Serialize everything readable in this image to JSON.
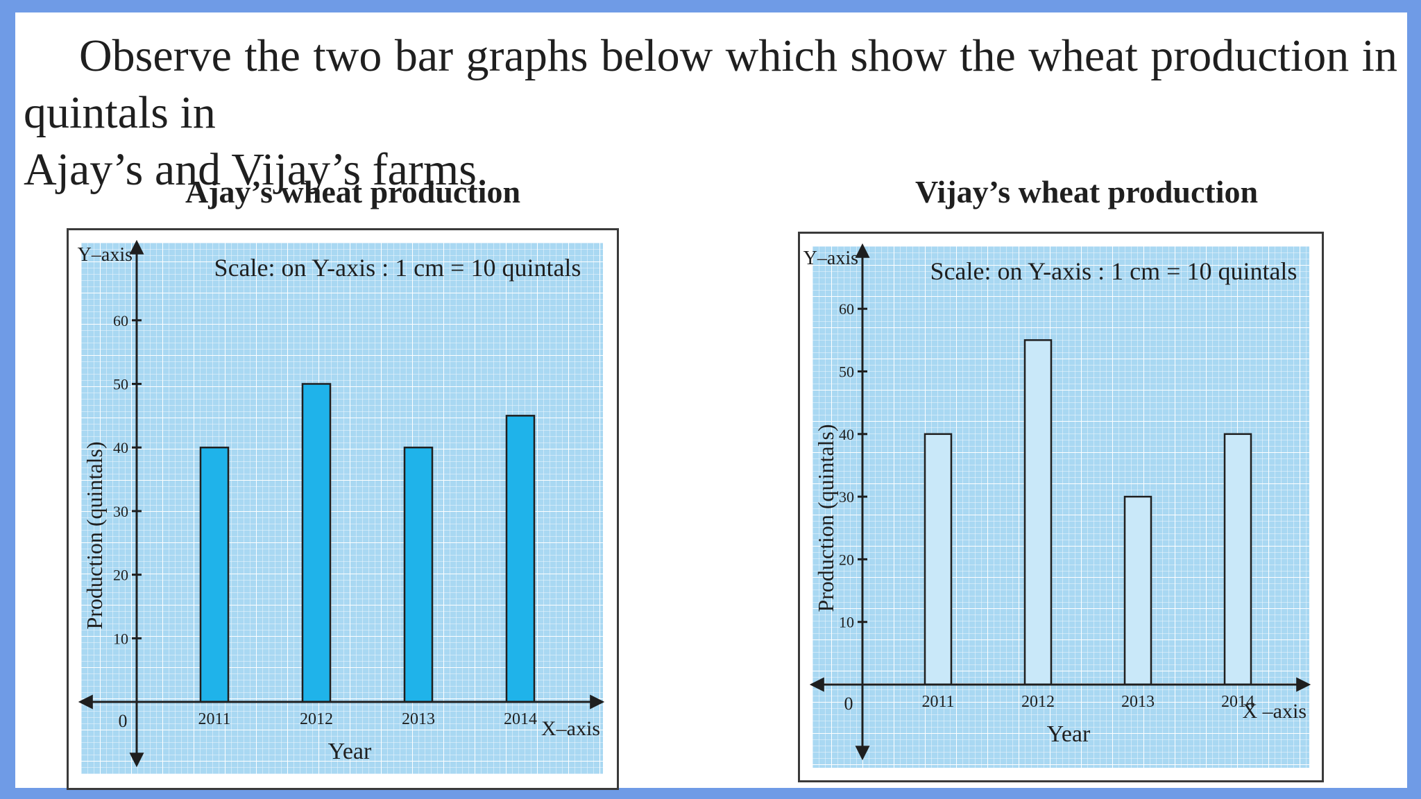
{
  "intro": {
    "line1": "Observe the two bar graphs below which show the wheat production in quintals in",
    "line2": "Ajay’s and Vijay’s farms."
  },
  "colors": {
    "page_border": "#6f9be6",
    "grid_background": "#a9d8f2",
    "grid_line": "#ffffff",
    "ajay_bar": "#1fb3ea",
    "vijay_bar": "#c9e8f9",
    "axis": "#1f1f1f"
  },
  "chart_data": [
    {
      "type": "bar",
      "title": "Ajay’s wheat production",
      "scale_note": "Scale: on Y-axis : 1 cm = 10 quintals",
      "categories": [
        "2011",
        "2012",
        "2013",
        "2014"
      ],
      "values": [
        40,
        50,
        40,
        45
      ],
      "xlabel": "Year",
      "ylabel": "Production (quintals)",
      "x_axis_label": "X–axis",
      "y_axis_label": "Y–axis",
      "origin_label": "0",
      "yticks": [
        "10",
        "20",
        "30",
        "40",
        "50",
        "60"
      ],
      "ylim": [
        0,
        60
      ],
      "grid": true
    },
    {
      "type": "bar",
      "title": "Vijay’s wheat production",
      "scale_note": "Scale: on Y-axis : 1 cm = 10 quintals",
      "categories": [
        "2011",
        "2012",
        "2013",
        "2014"
      ],
      "values": [
        40,
        55,
        30,
        40
      ],
      "xlabel": "Year",
      "ylabel": "Production (quintals)",
      "x_axis_label": "X –axis",
      "y_axis_label": "Y–axis",
      "origin_label": "0",
      "yticks": [
        "10",
        "20",
        "30",
        "40",
        "50",
        "60"
      ],
      "ylim": [
        0,
        60
      ],
      "grid": true
    }
  ]
}
